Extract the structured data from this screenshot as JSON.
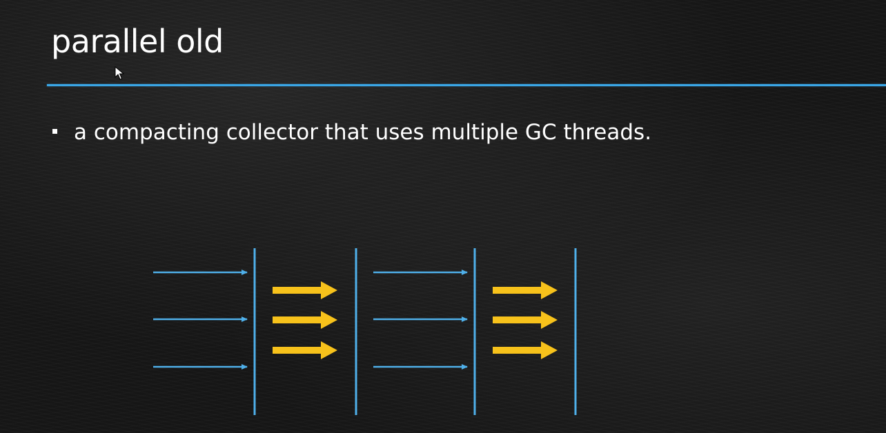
{
  "slide": {
    "title": "parallel old",
    "bullets": [
      "a compacting collector that uses multiple GC threads."
    ]
  },
  "colors": {
    "divider": "#3aa6e6",
    "mutator_arrow": "#4fb0ea",
    "gc_arrow": "#f7c21b",
    "phase_line": "#4fb0ea",
    "text": "#ffffff"
  },
  "diagram": {
    "phases": [
      "application",
      "gc",
      "application",
      "gc"
    ],
    "application_thread_count": 3,
    "gc_thread_count": 3
  }
}
